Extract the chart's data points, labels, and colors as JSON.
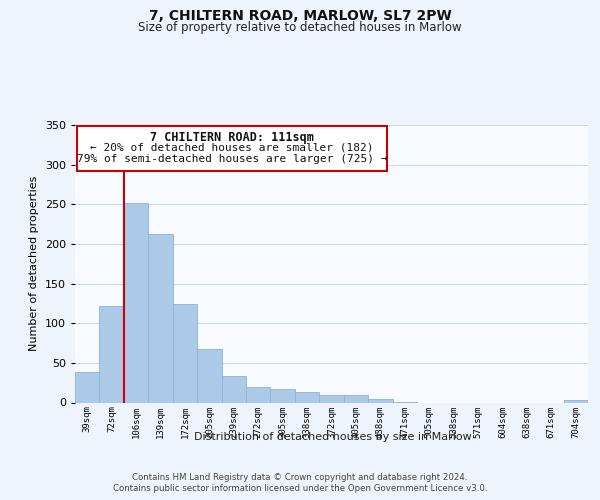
{
  "title": "7, CHILTERN ROAD, MARLOW, SL7 2PW",
  "subtitle": "Size of property relative to detached houses in Marlow",
  "xlabel": "Distribution of detached houses by size in Marlow",
  "ylabel": "Number of detached properties",
  "bar_labels": [
    "39sqm",
    "72sqm",
    "106sqm",
    "139sqm",
    "172sqm",
    "205sqm",
    "239sqm",
    "272sqm",
    "305sqm",
    "338sqm",
    "372sqm",
    "405sqm",
    "438sqm",
    "471sqm",
    "505sqm",
    "538sqm",
    "571sqm",
    "604sqm",
    "638sqm",
    "671sqm",
    "704sqm"
  ],
  "bar_values": [
    38,
    122,
    252,
    212,
    124,
    68,
    34,
    20,
    17,
    13,
    10,
    10,
    5,
    1,
    0,
    0,
    0,
    0,
    0,
    0,
    3
  ],
  "bar_color": "#adc9e8",
  "bar_edge_color": "#8ab4d8",
  "highlight_line_color": "#cc0000",
  "highlight_bar_index": 2,
  "ylim": [
    0,
    350
  ],
  "yticks": [
    0,
    50,
    100,
    150,
    200,
    250,
    300,
    350
  ],
  "annotation_title": "7 CHILTERN ROAD: 111sqm",
  "annotation_line1": "← 20% of detached houses are smaller (182)",
  "annotation_line2": "79% of semi-detached houses are larger (725) →",
  "footer_line1": "Contains HM Land Registry data © Crown copyright and database right 2024.",
  "footer_line2": "Contains public sector information licensed under the Open Government Licence v3.0.",
  "bg_color": "#eef4fc",
  "plot_bg_color": "#f8fbff",
  "grid_color": "#c8d8ec"
}
